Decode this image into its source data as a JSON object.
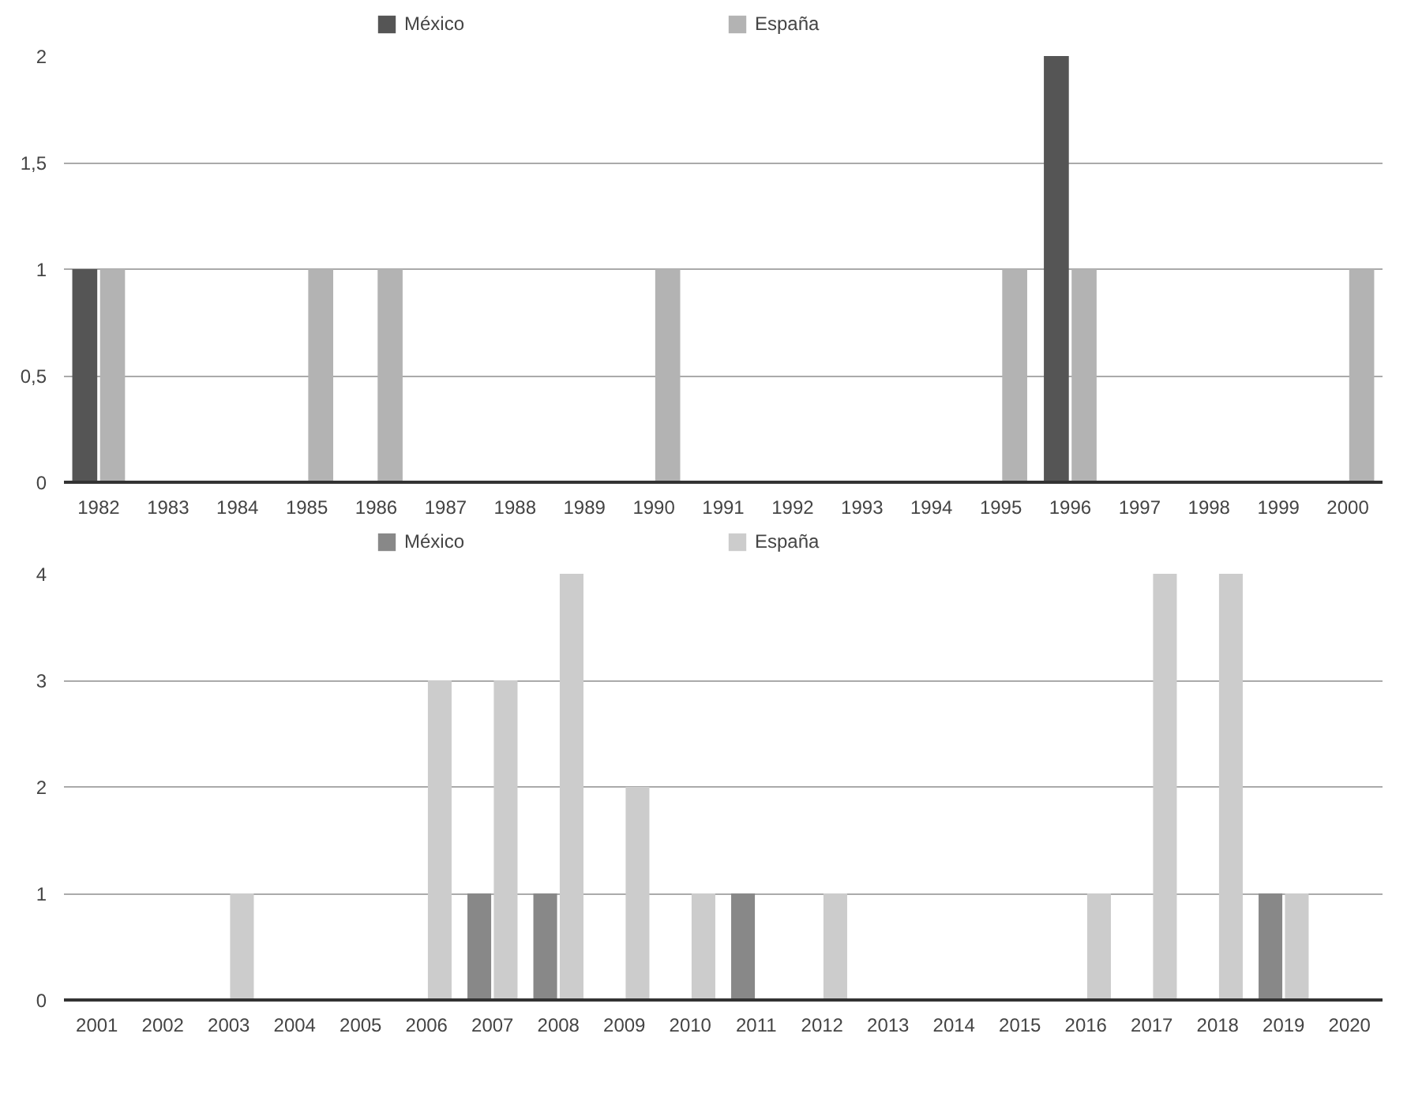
{
  "chart_data": [
    {
      "type": "bar",
      "categories": [
        "1982",
        "1983",
        "1984",
        "1985",
        "1986",
        "1987",
        "1988",
        "1989",
        "1990",
        "1991",
        "1992",
        "1993",
        "1994",
        "1995",
        "1996",
        "1997",
        "1998",
        "1999",
        "2000"
      ],
      "series": [
        {
          "name": "México",
          "color": "#555555",
          "values": [
            1,
            0,
            0,
            0,
            0,
            0,
            0,
            0,
            0,
            0,
            0,
            0,
            0,
            0,
            2,
            0,
            0,
            0,
            0
          ]
        },
        {
          "name": "España",
          "color": "#b3b3b3",
          "values": [
            1,
            0,
            0,
            1,
            1,
            0,
            0,
            0,
            1,
            0,
            0,
            0,
            0,
            1,
            1,
            0,
            0,
            0,
            1
          ]
        }
      ],
      "ylim": [
        0,
        2
      ],
      "yticks": [
        0,
        {
          "value": 0.5,
          "label": "0,5"
        },
        1,
        {
          "value": 1.5,
          "label": "1,5"
        },
        2
      ],
      "grid": "y",
      "legend": "top"
    },
    {
      "type": "bar",
      "categories": [
        "2001",
        "2002",
        "2003",
        "2004",
        "2005",
        "2006",
        "2007",
        "2008",
        "2009",
        "2010",
        "2011",
        "2012",
        "2013",
        "2014",
        "2015",
        "2016",
        "2017",
        "2018",
        "2019",
        "2020"
      ],
      "series": [
        {
          "name": "México",
          "color": "#888888",
          "values": [
            0,
            0,
            0,
            0,
            0,
            0,
            1,
            1,
            0,
            0,
            1,
            0,
            0,
            0,
            0,
            0,
            0,
            0,
            1,
            0
          ]
        },
        {
          "name": "España",
          "color": "#cccccc",
          "values": [
            0,
            0,
            1,
            0,
            0,
            3,
            3,
            4,
            2,
            1,
            0,
            1,
            0,
            0,
            0,
            1,
            4,
            4,
            1,
            0
          ]
        }
      ],
      "ylim": [
        0,
        4
      ],
      "yticks": [
        0,
        1,
        2,
        3,
        4
      ],
      "grid": "y",
      "legend": "top"
    }
  ]
}
